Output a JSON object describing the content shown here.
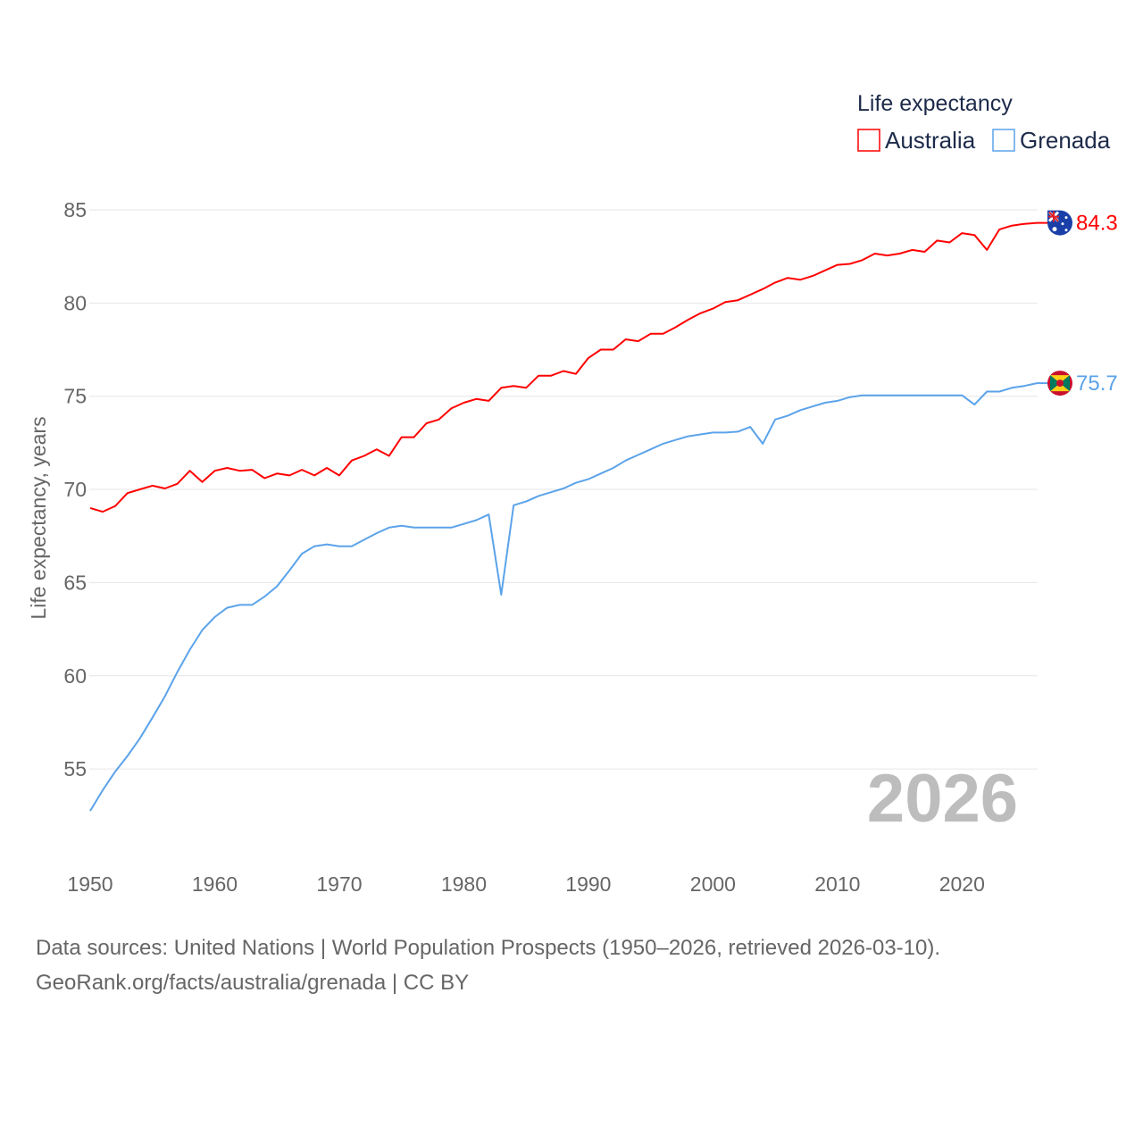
{
  "chart_data": {
    "type": "line",
    "title": "",
    "legend_title": "Life expectancy",
    "legend_position": "top-right",
    "ylabel": "Life expectancy, years",
    "xlabel": "",
    "xlim": [
      1950,
      2026
    ],
    "ylim": [
      51.5,
      85.5
    ],
    "x_ticks": [
      1950,
      1960,
      1970,
      1980,
      1990,
      2000,
      2010,
      2020
    ],
    "y_ticks": [
      55,
      60,
      65,
      70,
      75,
      80,
      85
    ],
    "grid": true,
    "year_watermark": "2026",
    "x": [
      1950,
      1951,
      1952,
      1953,
      1954,
      1955,
      1956,
      1957,
      1958,
      1959,
      1960,
      1961,
      1962,
      1963,
      1964,
      1965,
      1966,
      1967,
      1968,
      1969,
      1970,
      1971,
      1972,
      1973,
      1974,
      1975,
      1976,
      1977,
      1978,
      1979,
      1980,
      1981,
      1982,
      1983,
      1984,
      1985,
      1986,
      1987,
      1988,
      1989,
      1990,
      1991,
      1992,
      1993,
      1994,
      1995,
      1996,
      1997,
      1998,
      1999,
      2000,
      2001,
      2002,
      2003,
      2004,
      2005,
      2006,
      2007,
      2008,
      2009,
      2010,
      2011,
      2012,
      2013,
      2014,
      2015,
      2016,
      2017,
      2018,
      2019,
      2020,
      2021,
      2022,
      2023,
      2024,
      2025,
      2026
    ],
    "series": [
      {
        "name": "Australia",
        "color": "#ff0000",
        "end_label": "84.3",
        "flag": "australia-flag",
        "values": [
          69.0,
          68.8,
          69.1,
          69.8,
          70.0,
          70.2,
          70.05,
          70.3,
          71.0,
          70.4,
          71.0,
          71.15,
          71.0,
          71.05,
          70.6,
          70.85,
          70.75,
          71.05,
          70.75,
          71.15,
          70.75,
          71.55,
          71.8,
          72.15,
          71.8,
          72.8,
          72.8,
          73.55,
          73.75,
          74.35,
          74.65,
          74.85,
          74.75,
          75.45,
          75.55,
          75.45,
          76.1,
          76.1,
          76.35,
          76.2,
          77.05,
          77.5,
          77.5,
          78.05,
          77.95,
          78.35,
          78.35,
          78.7,
          79.1,
          79.45,
          79.7,
          80.05,
          80.15,
          80.45,
          80.75,
          81.1,
          81.35,
          81.25,
          81.45,
          81.75,
          82.05,
          82.1,
          82.3,
          82.65,
          82.55,
          82.65,
          82.85,
          82.75,
          83.35,
          83.25,
          83.75,
          83.65,
          82.85,
          83.95,
          84.15,
          84.25,
          84.3
        ]
      },
      {
        "name": "Grenada",
        "color": "#5ba3ea",
        "end_label": "75.7",
        "flag": "grenada-flag",
        "values": [
          52.75,
          53.85,
          54.85,
          55.7,
          56.65,
          57.75,
          58.9,
          60.2,
          61.4,
          62.45,
          63.15,
          63.65,
          63.8,
          63.8,
          64.25,
          64.8,
          65.65,
          66.55,
          66.95,
          67.05,
          66.95,
          66.95,
          67.3,
          67.65,
          67.95,
          68.05,
          67.95,
          67.95,
          67.95,
          67.95,
          68.15,
          68.35,
          68.65,
          64.35,
          69.15,
          69.35,
          69.65,
          69.85,
          70.05,
          70.35,
          70.55,
          70.85,
          71.15,
          71.55,
          71.85,
          72.15,
          72.45,
          72.65,
          72.85,
          72.95,
          73.05,
          73.05,
          73.1,
          73.35,
          72.45,
          73.75,
          73.95,
          74.25,
          74.45,
          74.65,
          74.75,
          74.95,
          75.05,
          75.05,
          75.05,
          75.05,
          75.05,
          75.05,
          75.05,
          75.05,
          75.05,
          74.55,
          75.25,
          75.25,
          75.45,
          75.55,
          75.7
        ]
      }
    ]
  },
  "footer": {
    "line1": "Data sources: United Nations | World Population Prospects (1950–2026, retrieved 2026-03-10).",
    "line2": "GeoRank.org/facts/australia/grenada | CC BY"
  }
}
